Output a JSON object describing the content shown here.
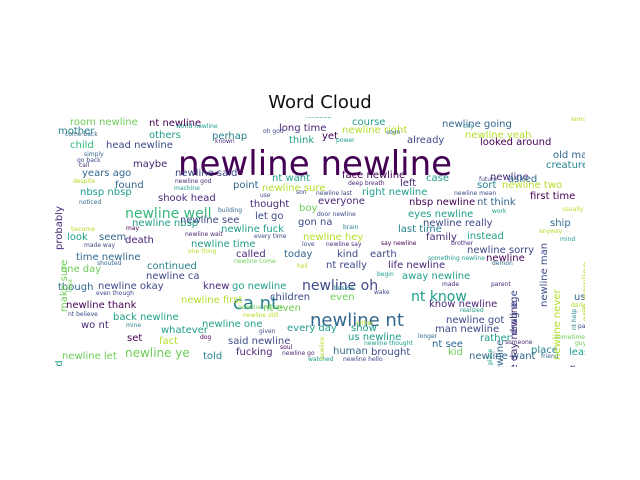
{
  "figure": {
    "title": "Word Cloud"
  },
  "palette": {
    "c1": "#440154",
    "c2": "#482878",
    "c3": "#3e4989",
    "c4": "#31688e",
    "c5": "#26828e",
    "c6": "#1f9e89",
    "c7": "#35b779",
    "c8": "#6ece58",
    "c9": "#b5de2b"
  },
  "words": [
    [
      "newline newline",
      178,
      176,
      34,
      "c1",
      0
    ],
    [
      "ca nt",
      233,
      310,
      18,
      "c5",
      0
    ],
    [
      "newline nt",
      310,
      327,
      18,
      "c4",
      0
    ],
    [
      "newline well",
      125,
      219,
      14,
      "c7",
      0
    ],
    [
      "newline oh",
      302,
      291,
      14,
      "c3",
      0
    ],
    [
      "nt know",
      411,
      302,
      14,
      "c6",
      0
    ],
    [
      "newline ye",
      125,
      357,
      12,
      "c8",
      0
    ],
    [
      "room newline",
      70,
      127,
      10,
      "c8",
      0
    ],
    [
      "nt newline",
      149,
      128,
      10,
      "c1",
      0
    ],
    [
      "long time",
      279,
      133,
      10,
      "c2",
      0
    ],
    [
      "course",
      352,
      127,
      10,
      "c6",
      0
    ],
    [
      "newline going",
      442,
      129,
      10,
      "c4",
      0
    ],
    [
      "newline right",
      342,
      135,
      10,
      "c9",
      0
    ],
    [
      "mother",
      58,
      136,
      10,
      "c5",
      0
    ],
    [
      "others",
      149,
      140,
      10,
      "c6",
      0
    ],
    [
      "perhap",
      212,
      141,
      10,
      "c5",
      0
    ],
    [
      "newline yeah",
      465,
      140,
      10,
      "c9",
      0
    ],
    [
      "head newline",
      106,
      150,
      10,
      "c3",
      0
    ],
    [
      "think",
      289,
      145,
      10,
      "c6",
      0
    ],
    [
      "yet",
      322,
      141,
      10,
      "c1",
      0
    ],
    [
      "already",
      407,
      145,
      10,
      "c3",
      0
    ],
    [
      "looked around",
      480,
      147,
      10,
      "c1",
      0
    ],
    [
      "child",
      70,
      150,
      10,
      "c7",
      0
    ],
    [
      "old man",
      553,
      160,
      10,
      "c4",
      0
    ],
    [
      "maybe",
      133,
      169,
      10,
      "c2",
      0
    ],
    [
      "creature",
      546,
      170,
      10,
      "c5",
      0
    ],
    [
      "years ago",
      82,
      178,
      10,
      "c4",
      0
    ],
    [
      "newline said",
      175,
      178,
      10,
      "c3",
      0
    ],
    [
      "face newline",
      342,
      180,
      10,
      "c1",
      0
    ],
    [
      "case",
      426,
      183,
      10,
      "c6",
      0
    ],
    [
      "newline",
      490,
      182,
      10,
      "c2",
      0
    ],
    [
      "nt want",
      272,
      183,
      10,
      "c6",
      0
    ],
    [
      "left",
      400,
      188,
      10,
      "c2",
      0
    ],
    [
      "asked",
      508,
      184,
      10,
      "c4",
      0
    ],
    [
      "found",
      115,
      190,
      10,
      "c4",
      0
    ],
    [
      "point",
      233,
      190,
      10,
      "c4",
      0
    ],
    [
      "newline sure",
      262,
      193,
      10,
      "c9",
      0
    ],
    [
      "right newline",
      362,
      197,
      10,
      "c6",
      0
    ],
    [
      "newline two",
      502,
      190,
      10,
      "c9",
      0
    ],
    [
      "sort",
      477,
      190,
      10,
      "c5",
      0
    ],
    [
      "nbsp nbsp",
      80,
      197,
      10,
      "c6",
      0
    ],
    [
      "shook head",
      158,
      203,
      10,
      "c2",
      0
    ],
    [
      "thought",
      250,
      209,
      10,
      "c2",
      0
    ],
    [
      "everyone",
      318,
      206,
      10,
      "c2",
      0
    ],
    [
      "newline nbsp",
      132,
      228,
      10,
      "c6",
      0
    ],
    [
      "newline see",
      180,
      225,
      10,
      "c3",
      0
    ],
    [
      "nbsp newline",
      409,
      207,
      10,
      "c1",
      0
    ],
    [
      "nt think",
      477,
      207,
      10,
      "c4",
      0
    ],
    [
      "first time",
      530,
      201,
      10,
      "c1",
      0
    ],
    [
      "boy",
      299,
      213,
      10,
      "c8",
      0
    ],
    [
      "eyes newline",
      408,
      219,
      10,
      "c6",
      0
    ],
    [
      "newline really",
      423,
      228,
      10,
      "c3",
      0
    ],
    [
      "ship",
      550,
      228,
      10,
      "c4",
      0
    ],
    [
      "let go",
      255,
      221,
      10,
      "c3",
      0
    ],
    [
      "gon na",
      298,
      227,
      10,
      "c3",
      0
    ],
    [
      "newline fuck",
      221,
      234,
      10,
      "c6",
      0
    ],
    [
      "last time",
      398,
      234,
      10,
      "c5",
      0
    ],
    [
      "family",
      426,
      242,
      10,
      "c2",
      0
    ],
    [
      "instead",
      467,
      241,
      10,
      "c6",
      0
    ],
    [
      "newline hey",
      303,
      242,
      10,
      "c9",
      0
    ],
    [
      "look",
      67,
      242,
      10,
      "c6",
      0
    ],
    [
      "seem",
      99,
      242,
      10,
      "c4",
      0
    ],
    [
      "death",
      125,
      245,
      10,
      "c2",
      0
    ],
    [
      "newline time",
      191,
      249,
      10,
      "c6",
      0
    ],
    [
      "earth",
      370,
      259,
      10,
      "c3",
      0
    ],
    [
      "kind",
      337,
      259,
      10,
      "c3",
      0
    ],
    [
      "newline sorry",
      467,
      255,
      10,
      "c3",
      0
    ],
    [
      "time newline",
      76,
      262,
      10,
      "c4",
      0
    ],
    [
      "called",
      236,
      259,
      10,
      "c2",
      0
    ],
    [
      "today",
      284,
      259,
      10,
      "c4",
      0
    ],
    [
      "nt really",
      326,
      270,
      10,
      "c3",
      0
    ],
    [
      "life newline",
      388,
      270,
      10,
      "c2",
      0
    ],
    [
      "newline",
      486,
      263,
      10,
      "c1",
      0
    ],
    [
      "continued",
      147,
      271,
      10,
      "c5",
      0
    ],
    [
      "one day",
      61,
      274,
      10,
      "c8",
      0
    ],
    [
      "newline ca",
      146,
      281,
      10,
      "c3",
      0
    ],
    [
      "away newline",
      402,
      281,
      10,
      "c6",
      0
    ],
    [
      "though",
      58,
      292,
      10,
      "c4",
      0
    ],
    [
      "newline okay",
      98,
      291,
      10,
      "c3",
      0
    ],
    [
      "knew",
      203,
      291,
      10,
      "c2",
      0
    ],
    [
      "go newline",
      232,
      291,
      10,
      "c6",
      0
    ],
    [
      "newline first",
      181,
      305,
      10,
      "c9",
      0
    ],
    [
      "children",
      270,
      302,
      10,
      "c3",
      0
    ],
    [
      "even",
      330,
      302,
      10,
      "c8",
      0
    ],
    [
      "used",
      574,
      302,
      10,
      "c4",
      0
    ],
    [
      "newline thank",
      66,
      310,
      10,
      "c1",
      0
    ],
    [
      "nt even",
      263,
      313,
      10,
      "c8",
      0
    ],
    [
      "know newline",
      429,
      309,
      10,
      "c2",
      0
    ],
    [
      "back newline",
      113,
      322,
      10,
      "c6",
      0
    ],
    [
      "newline one",
      202,
      329,
      10,
      "c6",
      0
    ],
    [
      "newline got",
      446,
      325,
      10,
      "c3",
      0
    ],
    [
      "wo nt",
      81,
      330,
      10,
      "c2",
      0
    ],
    [
      "every day",
      287,
      333,
      10,
      "c6",
      0
    ],
    [
      "show",
      351,
      333,
      10,
      "c6",
      0
    ],
    [
      "man newline",
      435,
      334,
      10,
      "c3",
      0
    ],
    [
      "set",
      127,
      343,
      10,
      "c1",
      0
    ],
    [
      "fact",
      159,
      346,
      10,
      "c9",
      0
    ],
    [
      "said newline",
      228,
      346,
      10,
      "c3",
      0
    ],
    [
      "us newline",
      348,
      342,
      10,
      "c6",
      0
    ],
    [
      "rather",
      480,
      343,
      10,
      "c6",
      0
    ],
    [
      "nt see",
      432,
      349,
      10,
      "c4",
      0
    ],
    [
      "fucking",
      236,
      357,
      10,
      "c2",
      0
    ],
    [
      "human",
      333,
      356,
      10,
      "c4",
      0
    ],
    [
      "brought",
      371,
      357,
      10,
      "c3",
      0
    ],
    [
      "kid",
      448,
      357,
      10,
      "c8",
      0
    ],
    [
      "place",
      531,
      355,
      10,
      "c5",
      0
    ],
    [
      "least",
      569,
      357,
      10,
      "c6",
      0
    ],
    [
      "told",
      203,
      361,
      10,
      "c5",
      0
    ],
    [
      "newline want",
      469,
      361,
      10,
      "c4",
      0
    ],
    [
      "newline let",
      62,
      361,
      10,
      "c8",
      0
    ],
    [
      "whatever",
      161,
      335,
      10,
      "c6",
      0
    ],
    [
      "world newline",
      176,
      129,
      6,
      "c6",
      0
    ],
    [
      "come back",
      65,
      137,
      6,
      "c4",
      0
    ],
    [
      "known",
      215,
      144,
      6,
      "c2",
      0
    ],
    [
      "oh god",
      263,
      134,
      6,
      "c3",
      0
    ],
    [
      "followed",
      306,
      119,
      6,
      "c6",
      0
    ],
    [
      "power",
      336,
      143,
      6,
      "c6",
      0
    ],
    [
      "soon",
      386,
      135,
      6,
      "c4",
      0
    ],
    [
      "city",
      463,
      129,
      6,
      "c5",
      0
    ],
    [
      "almost",
      571,
      122,
      6,
      "c9",
      0
    ],
    [
      "simply",
      84,
      157,
      6,
      "c4",
      0
    ],
    [
      "go back",
      77,
      163,
      6,
      "c3",
      0
    ],
    [
      "call",
      79,
      168,
      6,
      "c2",
      0
    ],
    [
      "newline god",
      175,
      184,
      6,
      "c2",
      0
    ],
    [
      "machine",
      174,
      191,
      6,
      "c6",
      0
    ],
    [
      "despite",
      73,
      184,
      6,
      "c9",
      0
    ],
    [
      "deep breath",
      348,
      186,
      6,
      "c2",
      0
    ],
    [
      "future",
      479,
      182,
      6,
      "c3",
      0
    ],
    [
      "use",
      260,
      198,
      6,
      "c3",
      0
    ],
    [
      "son",
      296,
      195,
      6,
      "c3",
      0
    ],
    [
      "newline last",
      316,
      196,
      6,
      "c3",
      0
    ],
    [
      "newline mean",
      454,
      196,
      6,
      "c3",
      0
    ],
    [
      "noticed",
      79,
      205,
      6,
      "c4",
      0
    ],
    [
      "building",
      218,
      213,
      6,
      "c4",
      0
    ],
    [
      "usually",
      562,
      212,
      6,
      "c9",
      0
    ],
    [
      "work",
      492,
      214,
      6,
      "c6",
      0
    ],
    [
      "door newline",
      317,
      217,
      6,
      "c3",
      0
    ],
    [
      "brain",
      343,
      230,
      6,
      "c5",
      0
    ],
    [
      "become",
      71,
      232,
      6,
      "c9",
      0
    ],
    [
      "may",
      126,
      231,
      6,
      "c1",
      0
    ],
    [
      "anyway",
      539,
      234,
      6,
      "c9",
      0
    ],
    [
      "newline wait",
      185,
      237,
      6,
      "c2",
      0
    ],
    [
      "every time",
      254,
      239,
      6,
      "c3",
      0
    ],
    [
      "mind",
      560,
      242,
      6,
      "c6",
      0
    ],
    [
      "made way",
      84,
      248,
      6,
      "c3",
      0
    ],
    [
      "love",
      302,
      247,
      6,
      "c3",
      0
    ],
    [
      "newline say",
      326,
      247,
      6,
      "c2",
      0
    ],
    [
      "say newline",
      381,
      246,
      6,
      "c1",
      0
    ],
    [
      "brother",
      451,
      246,
      6,
      "c2",
      0
    ],
    [
      "one thing",
      188,
      254,
      6,
      "c9",
      0
    ],
    [
      "newline come",
      234,
      264,
      6,
      "c8",
      0
    ],
    [
      "hell",
      297,
      269,
      6,
      "c9",
      0
    ],
    [
      "something newline",
      428,
      261,
      6,
      "c6",
      0
    ],
    [
      "demon",
      492,
      266,
      6,
      "c4",
      0
    ],
    [
      "shouted",
      97,
      266,
      6,
      "c4",
      0
    ],
    [
      "begin",
      377,
      277,
      6,
      "c6",
      0
    ],
    [
      "made",
      442,
      287,
      6,
      "c2",
      0
    ],
    [
      "parent",
      491,
      287,
      6,
      "c2",
      0
    ],
    [
      "beside",
      334,
      291,
      6,
      "c5",
      0
    ],
    [
      "wake",
      374,
      295,
      6,
      "c3",
      0
    ],
    [
      "even though",
      96,
      296,
      6,
      "c3",
      0
    ],
    [
      "realized",
      460,
      313,
      6,
      "c6",
      0
    ],
    [
      "newline course",
      238,
      310,
      6,
      "c8",
      0
    ],
    [
      "newline still",
      243,
      318,
      6,
      "c9",
      0
    ],
    [
      "either",
      356,
      326,
      6,
      "c9",
      0
    ],
    [
      "part",
      578,
      329,
      6,
      "c3",
      0
    ],
    [
      "house",
      582,
      313,
      6,
      "c9",
      0
    ],
    [
      "dark",
      571,
      308,
      6,
      "c9",
      0
    ],
    [
      "nt believe",
      68,
      317,
      6,
      "c3",
      0
    ],
    [
      "mine",
      126,
      328,
      6,
      "c5",
      0
    ],
    [
      "given",
      259,
      334,
      6,
      "c3",
      0
    ],
    [
      "dog",
      200,
      340,
      6,
      "c1",
      0
    ],
    [
      "newline thought",
      364,
      346,
      6,
      "c6",
      0
    ],
    [
      "longer",
      418,
      339,
      6,
      "c4",
      0
    ],
    [
      "someone",
      505,
      345,
      6,
      "c2",
      0
    ],
    [
      "sometime",
      555,
      340,
      6,
      "c8",
      0
    ],
    [
      "guy",
      575,
      346,
      6,
      "c8",
      0
    ],
    [
      "friend",
      541,
      359,
      6,
      "c4",
      0
    ],
    [
      "soul",
      280,
      350,
      6,
      "c1",
      0
    ],
    [
      "newline go",
      282,
      356,
      6,
      "c2",
      0
    ],
    [
      "watched",
      308,
      362,
      6,
      "c6",
      0
    ],
    [
      "newline hello",
      343,
      362,
      6,
      "c3",
      0
    ],
    [
      "probably",
      55,
      190,
      10,
      "c2",
      1
    ],
    [
      "make sure",
      60,
      252,
      10,
      "c8",
      1
    ],
    [
      "idea",
      68,
      232,
      6,
      "c8",
      1
    ],
    [
      "seemed",
      55,
      340,
      10,
      "c6",
      1
    ],
    [
      "father",
      67,
      356,
      10,
      "c8",
      1
    ],
    [
      "land",
      597,
      181,
      6,
      "c3",
      1
    ],
    [
      "see newline",
      592,
      272,
      10,
      "c3",
      1
    ],
    [
      "one newline",
      582,
      262,
      10,
      "c9",
      1
    ],
    [
      "nt help",
      572,
      270,
      6,
      "c5",
      1
    ],
    [
      "one",
      564,
      333,
      10,
      "c9",
      1
    ],
    [
      "nt",
      571,
      311,
      6,
      "c2",
      1
    ],
    [
      "newline day newline",
      510,
      343,
      10,
      "c2",
      1
    ],
    [
      "newline never",
      553,
      300,
      10,
      "c9",
      1
    ],
    [
      "newline man",
      540,
      247,
      10,
      "c3",
      1
    ],
    [
      "day newline",
      496,
      340,
      10,
      "c4",
      1
    ],
    [
      "drag age",
      510,
      275,
      10,
      "c3",
      1
    ],
    [
      "newline place",
      488,
      330,
      6,
      "c6",
      1
    ],
    [
      "newline",
      320,
      300,
      6,
      "c9",
      1
    ]
  ]
}
